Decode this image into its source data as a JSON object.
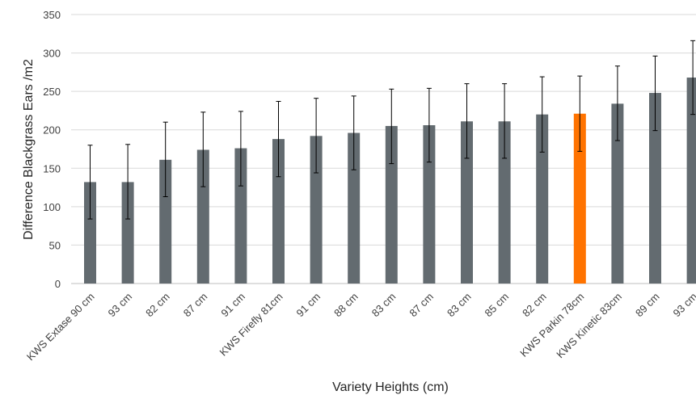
{
  "chart_data": {
    "type": "bar",
    "title": "",
    "xlabel": "Variety Heights (cm)",
    "ylabel": "Difference Blackgrass Ears /m2",
    "ylim": [
      0,
      350
    ],
    "yticks": [
      "0",
      "50",
      "100",
      "150",
      "200",
      "250",
      "300",
      "350"
    ],
    "grid": true,
    "legend": "none",
    "categories": [
      "KWS Extase 90 cm",
      "93 cm",
      "82 cm",
      "87 cm",
      "91 cm",
      "KWS Firefly 81cm",
      "91 cm",
      "88 cm",
      "83 cm",
      "87 cm",
      "83 cm",
      "85 cm",
      "82 cm",
      "KWS Parkin 78cm",
      "KWS Kinetic 83cm",
      "89 cm",
      "93 cm"
    ],
    "values": [
      132,
      132,
      161,
      174,
      176,
      188,
      192,
      196,
      205,
      206,
      211,
      211,
      220,
      221,
      234,
      248,
      268
    ],
    "error_high": [
      180,
      181,
      210,
      223,
      224,
      237,
      241,
      244,
      253,
      254,
      260,
      260,
      269,
      270,
      283,
      296,
      316
    ],
    "error_low": [
      84,
      84,
      113,
      126,
      127,
      139,
      144,
      148,
      156,
      158,
      163,
      163,
      171,
      172,
      186,
      199,
      220
    ],
    "colors": {
      "default": "#636b70",
      "highlight": "#ff7300",
      "highlight_category": "KWS Parkin 78cm",
      "grid": "#d9d9d9",
      "error_bar": "#000000"
    }
  }
}
